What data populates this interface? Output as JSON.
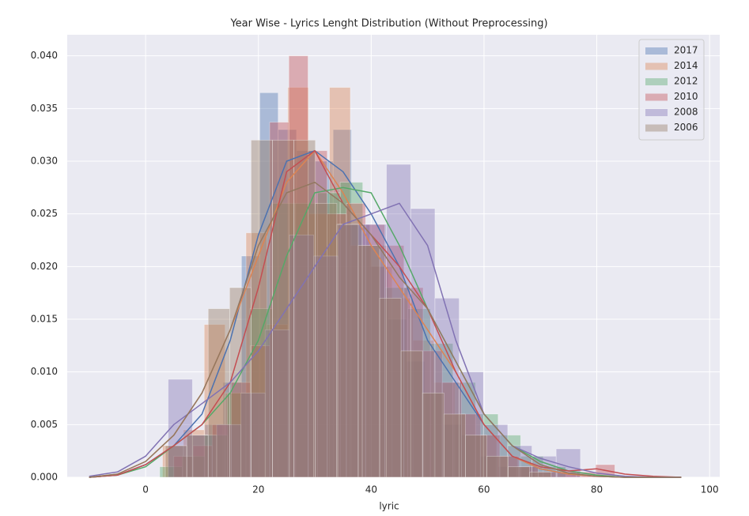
{
  "chart_data": {
    "type": "histogram",
    "title": "Year Wise - Lyrics Lenght Distribution (Without Preprocessing)",
    "x_label": "lyric",
    "xlim": [
      -13.9,
      101.8
    ],
    "ylim": [
      0,
      0.042
    ],
    "xticks": [
      0,
      20,
      40,
      60,
      80,
      100
    ],
    "yticks": [
      {
        "value": 0,
        "label": "0.000"
      },
      {
        "value": 0.005,
        "label": "0.005"
      },
      {
        "value": 0.01,
        "label": "0.010"
      },
      {
        "value": 0.015,
        "label": "0.015"
      },
      {
        "value": 0.02,
        "label": "0.020"
      },
      {
        "value": 0.025,
        "label": "0.025"
      },
      {
        "value": 0.03,
        "label": "0.030"
      },
      {
        "value": 0.035,
        "label": "0.035"
      },
      {
        "value": 0.04,
        "label": "0.040"
      }
    ],
    "grid": true,
    "legend": "upper right",
    "kde_x": [
      -10,
      -5,
      0,
      5,
      10,
      15,
      20,
      25,
      30,
      35,
      40,
      45,
      50,
      55,
      60,
      65,
      70,
      75,
      80,
      85,
      90,
      95
    ],
    "series": [
      {
        "name": "2017",
        "color": "#4c72b0",
        "bins": [
          4,
          7.25,
          10.5,
          13.75,
          17,
          20.25,
          23.5,
          26.75,
          30,
          33.25,
          36.5,
          39.75,
          43,
          46.25,
          49.5,
          52.75,
          56,
          59.25,
          62.5,
          65.75,
          69
        ],
        "values": [
          0.003,
          0.004,
          0.005,
          0.009,
          0.021,
          0.0365,
          0.033,
          0.031,
          0.03,
          0.033,
          0.024,
          0.02,
          0.015,
          0.011,
          0.008,
          0.005,
          0.004,
          0.002,
          0.001,
          0.001
        ],
        "kde": [
          0,
          0.0002,
          0.0012,
          0.003,
          0.006,
          0.013,
          0.023,
          0.03,
          0.031,
          0.029,
          0.025,
          0.02,
          0.013,
          0.009,
          0.005,
          0.002,
          0.0008,
          0.0003,
          0.0001,
          0,
          0,
          0
        ]
      },
      {
        "name": "2014",
        "color": "#dd8452",
        "bins": [
          3,
          6.7,
          10.4,
          14.1,
          17.8,
          21.5,
          25.2,
          28.9,
          32.6,
          36.3,
          40,
          43.7,
          47.4,
          51.1,
          54.8,
          58.5,
          62.2,
          65.9,
          69.6,
          73.3,
          77
        ],
        "values": [
          0.003,
          0.0045,
          0.0145,
          0.008,
          0.0232,
          0.0145,
          0.037,
          0.025,
          0.037,
          0.022,
          0.02,
          0.017,
          0.013,
          0.009,
          0.006,
          0.004,
          0.002,
          0.001,
          0.0005,
          0.0005
        ],
        "kde": [
          0,
          0.0003,
          0.0015,
          0.004,
          0.008,
          0.014,
          0.021,
          0.028,
          0.031,
          0.027,
          0.022,
          0.018,
          0.014,
          0.01,
          0.005,
          0.002,
          0.0008,
          0.0003,
          0.0001,
          0,
          0,
          0
        ]
      },
      {
        "name": "2012",
        "color": "#55a868",
        "bins": [
          2.5,
          6.5,
          10.5,
          14.5,
          18.5,
          22.5,
          26.5,
          30.5,
          34.5,
          38.5,
          42.5,
          46.5,
          50.5,
          54.5,
          58.5,
          62.5,
          66.5,
          70.5,
          74.5
        ],
        "values": [
          0.001,
          0.002,
          0.004,
          0.008,
          0.016,
          0.026,
          0.026,
          0.027,
          0.028,
          0.022,
          0.018,
          0.016,
          0.0127,
          0.009,
          0.006,
          0.004,
          0.002,
          0.001
        ],
        "kde": [
          0,
          0.0002,
          0.001,
          0.003,
          0.005,
          0.008,
          0.013,
          0.021,
          0.027,
          0.0275,
          0.027,
          0.022,
          0.016,
          0.011,
          0.006,
          0.003,
          0.0015,
          0.0006,
          0.0002,
          0,
          0,
          0
        ]
      },
      {
        "name": "2010",
        "color": "#c44e52",
        "bins": [
          5,
          8.4,
          11.8,
          15.2,
          18.6,
          22,
          25.4,
          28.8,
          32.2,
          35.6,
          39,
          42.4,
          45.8,
          49.2,
          52.6,
          56,
          59.4,
          62.8,
          66.2,
          69.6,
          73,
          76.4,
          79.8,
          83.2
        ],
        "values": [
          0.002,
          0.003,
          0.005,
          0.009,
          0.0125,
          0.0337,
          0.04,
          0.031,
          0.025,
          0.026,
          0.024,
          0.022,
          0.018,
          0.012,
          0.009,
          0.006,
          0.004,
          0.002,
          0.001,
          0.0005,
          0.0005,
          0.0005,
          0.0012
        ],
        "kde": [
          0,
          0.0002,
          0.0012,
          0.003,
          0.005,
          0.009,
          0.018,
          0.029,
          0.031,
          0.026,
          0.023,
          0.02,
          0.016,
          0.01,
          0.005,
          0.002,
          0.001,
          0.0006,
          0.0008,
          0.0003,
          0.0001,
          0
        ]
      },
      {
        "name": "2008",
        "color": "#8172b3",
        "bins": [
          4,
          8.3,
          12.6,
          16.9,
          21.2,
          25.5,
          29.8,
          34.1,
          38.4,
          42.7,
          47,
          51.3,
          55.6,
          59.9,
          64.2,
          68.5,
          72.8,
          77.1
        ],
        "values": [
          0.0093,
          0.004,
          0.005,
          0.008,
          0.014,
          0.023,
          0.021,
          0.024,
          0.024,
          0.0297,
          0.0255,
          0.017,
          0.01,
          0.005,
          0.003,
          0.002,
          0.0027
        ],
        "kde": [
          0.0001,
          0.0005,
          0.002,
          0.005,
          0.007,
          0.009,
          0.012,
          0.016,
          0.02,
          0.024,
          0.025,
          0.026,
          0.022,
          0.013,
          0.006,
          0.003,
          0.0018,
          0.001,
          0.0004,
          0.0001,
          0,
          0
        ]
      },
      {
        "name": "2006",
        "color": "#937860",
        "bins": [
          3.5,
          7.3,
          11.1,
          14.9,
          18.7,
          22.5,
          26.3,
          30.1,
          33.9,
          37.7,
          41.5,
          45.3,
          49.1,
          52.9,
          56.7,
          60.5,
          64.3,
          68.1,
          71.9
        ],
        "values": [
          0.003,
          0.004,
          0.016,
          0.018,
          0.032,
          0.032,
          0.032,
          0.026,
          0.024,
          0.022,
          0.017,
          0.012,
          0.008,
          0.006,
          0.004,
          0.002,
          0.001,
          0.0005
        ],
        "kde": [
          0,
          0.0003,
          0.0015,
          0.004,
          0.008,
          0.014,
          0.022,
          0.027,
          0.028,
          0.026,
          0.023,
          0.019,
          0.016,
          0.011,
          0.006,
          0.003,
          0.0012,
          0.0004,
          0.0001,
          0,
          0,
          0
        ]
      }
    ]
  }
}
